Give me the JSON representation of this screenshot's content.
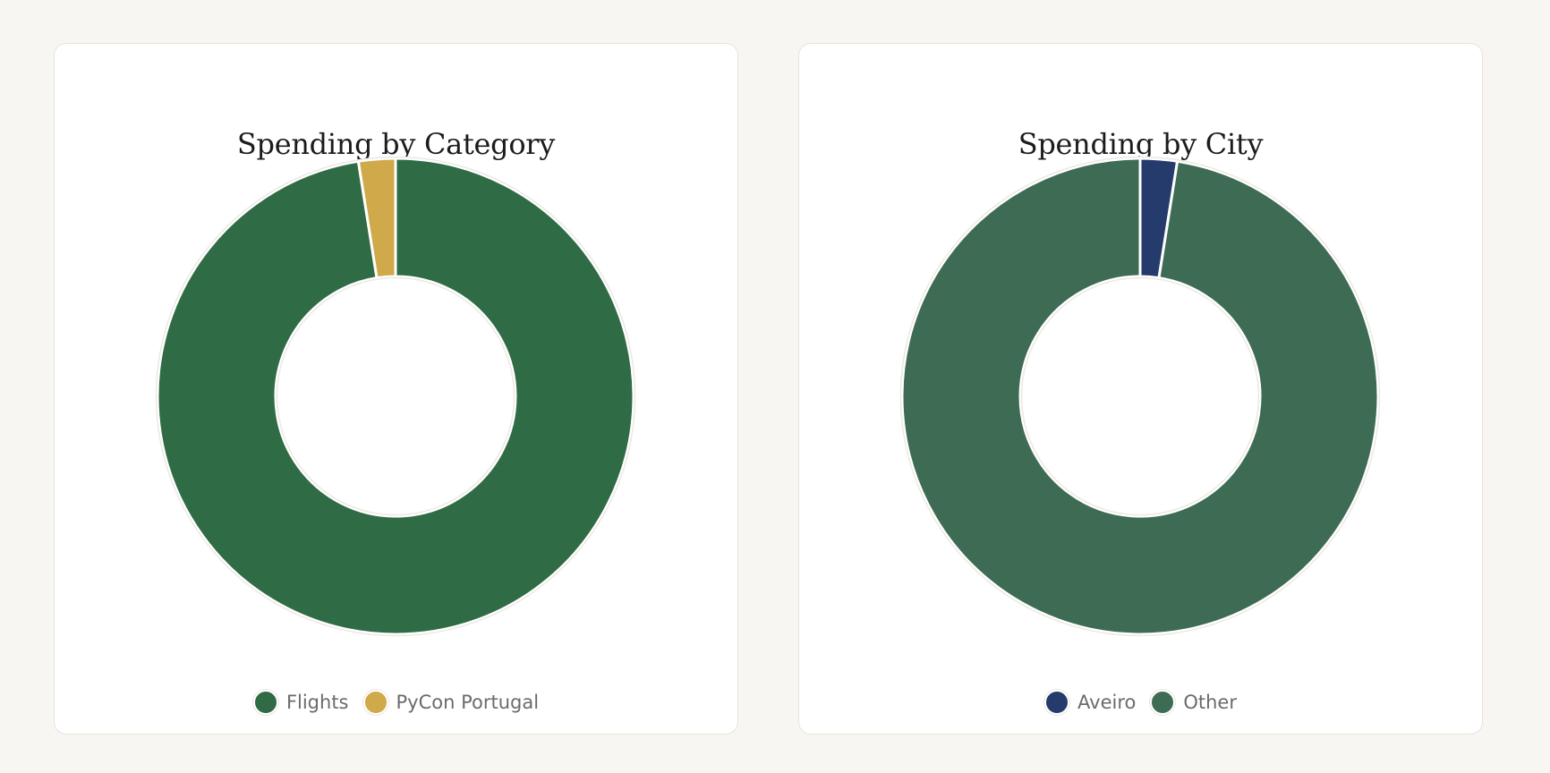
{
  "chart_data": [
    {
      "type": "pie",
      "title": "Spending by Category",
      "categories": [
        "Flights",
        "PyCon Portugal"
      ],
      "values": [
        97.5,
        2.5
      ],
      "colors": [
        "#2f6b45",
        "#d0a94a"
      ],
      "donut": true,
      "legend": "bottom"
    },
    {
      "type": "pie",
      "title": "Spending by City",
      "categories": [
        "Aveiro",
        "Other"
      ],
      "values": [
        2.5,
        97.5
      ],
      "colors": [
        "#253b6c",
        "#3e6b53"
      ],
      "donut": true,
      "legend": "bottom"
    }
  ]
}
